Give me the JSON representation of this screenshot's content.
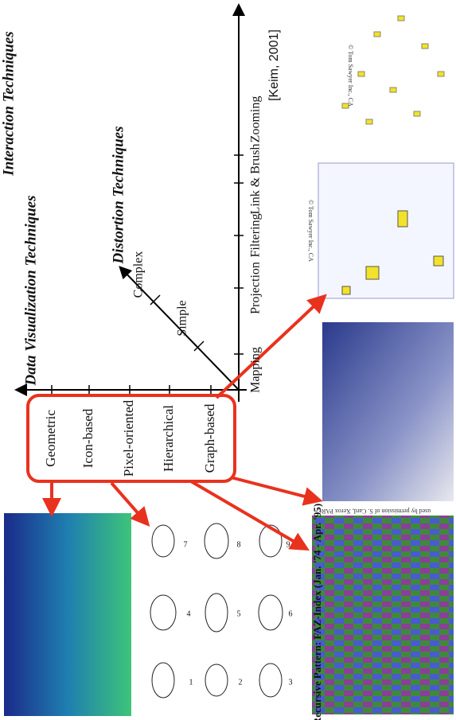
{
  "axes": {
    "data_visualization": "Data Visualization Techniques",
    "distortion": "Distortion Techniques",
    "interaction": "Interaction Techniques"
  },
  "interaction_steps": [
    "Mapping",
    "Projection",
    "Filtering",
    "Link & Brush",
    "Zooming"
  ],
  "distortion_steps": [
    "Simple",
    "Complex"
  ],
  "citation": "[Keim, 2001]",
  "categories": [
    "Geometric",
    "Icon-based",
    "Pixel-oriented",
    "Hierarchical",
    "Graph-based"
  ],
  "images": {
    "graph_credit_1": "© Tom Sawyer Inc., CA",
    "graph_credit_2": "© Tom Sawyer Inc., CA",
    "hierarchy_credit": "used by permission of S. Card, Xerox PARC",
    "recursive_pattern_title": "Recursive Pattern: FAZ-Index (Jan. '74 - Apr. '95)"
  },
  "face_numbers": [
    "1",
    "2",
    "3",
    "4",
    "5",
    "6",
    "7",
    "8",
    "9"
  ]
}
